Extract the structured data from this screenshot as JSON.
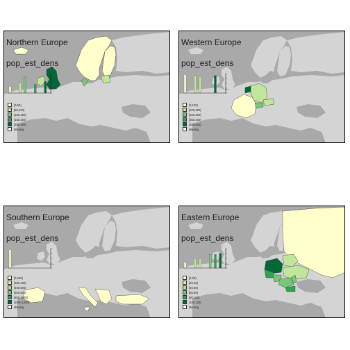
{
  "colors": {
    "sea": "#a9a9a9",
    "land": "#d4d4d4",
    "border": "#333333",
    "palette": [
      "#ffffcc",
      "#c2e699",
      "#78c679",
      "#31a354",
      "#006837"
    ],
    "missing": "#ffffff"
  },
  "variable": "pop_est_dens",
  "panels": [
    {
      "title": "Northern Europe",
      "legend": [
        "[0,50)",
        "[50,100)",
        "[100,150)",
        "[150,200)",
        "[200,250)",
        "Missing"
      ],
      "histogram": [
        0.35,
        0.0,
        0.55,
        0.85,
        0.0,
        0.45,
        0.0,
        0.6
      ]
    },
    {
      "title": "Western Europe",
      "legend": [
        "[0,100)",
        "[100,200)",
        "[200,300)",
        "[300,400)",
        "[400,500)",
        "Missing"
      ],
      "histogram": [
        0.95,
        0.0,
        0.9,
        0.85,
        0.0,
        0.0,
        0.9,
        0.0
      ]
    },
    {
      "title": "Southern Europe",
      "legend": [
        "[0,200)",
        "[200,400)",
        "[400,600)",
        "[600,800)",
        "[800,1000)",
        "[1000,1200)",
        "Missing"
      ],
      "histogram": [
        0.95,
        0.0,
        0.0,
        0.0,
        0.0,
        0.0,
        0.0,
        0.0
      ]
    },
    {
      "title": "Eastern Europe",
      "legend": [
        "[0,20)",
        "[20,40)",
        "[40,60)",
        "[60,80)",
        "[80,100)",
        "[100,120)",
        "Missing"
      ],
      "histogram": [
        0.3,
        0.0,
        0.5,
        0.5,
        0.0,
        0.7,
        0.7,
        0.75
      ]
    }
  ]
}
